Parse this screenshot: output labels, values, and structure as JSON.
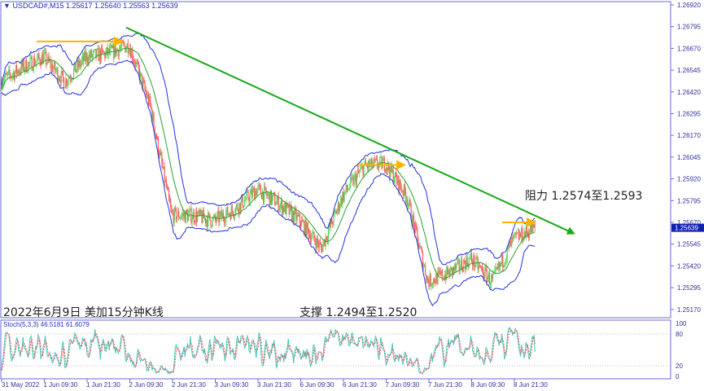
{
  "header": {
    "symbol": "USDCAD#,M15",
    "open": "1.25617",
    "high": "1.25640",
    "low": "1.25563",
    "close": "1.25639"
  },
  "annotations": {
    "title": "2022年6月9日 美加15分钟K线",
    "support": "支撑 1.2494至1.2520",
    "resistance": "阻力 1.2574至1.2593"
  },
  "colors": {
    "bull": "#5fd35f",
    "bear": "#ff5a5a",
    "bands": "#2233dd",
    "ma": "#2ea02e",
    "trend": "#1aaa1a",
    "levels": "#ffb300",
    "stoch_main": "#40c8c0",
    "stoch_signal": "#ff5050",
    "axis": "#6a6ad8",
    "price_tag_bg": "#1020b0"
  },
  "chart_data": [
    {
      "type": "candlestick",
      "symbol": "USDCAD#",
      "timeframe": "M15",
      "indicators": [
        "Bollinger Bands",
        "Moving Average"
      ],
      "y_axis": {
        "range": [
          1.251,
          1.2696
        ],
        "ticks": [
          "1.26920",
          "1.26795",
          "1.26670",
          "1.26545",
          "1.26420",
          "1.26295",
          "1.26170",
          "1.26045",
          "1.25920",
          "1.25795",
          "1.25670",
          "1.25545",
          "1.25420",
          "1.25295",
          "1.25170"
        ]
      },
      "current_price": "1.25639",
      "x_axis": {
        "ticks": [
          "31 May 2022",
          "1 Jun 09:30",
          "1 Jun 21:30",
          "2 Jun 09:30",
          "2 Jun 21:30",
          "3 Jun 09:30",
          "3 Jun 21:30",
          "6 Jun 09:30",
          "6 Jun 21:30",
          "7 Jun 09:30",
          "7 Jun 21:30",
          "8 Jun 09:30",
          "8 Jun 21:30"
        ]
      },
      "price_path": [
        {
          "t": "31 May 21:30",
          "close": 1.2648
        },
        {
          "t": "1 Jun 03:30",
          "close": 1.2656
        },
        {
          "t": "1 Jun 09:30",
          "close": 1.2662
        },
        {
          "t": "1 Jun 15:30",
          "close": 1.2648
        },
        {
          "t": "1 Jun 21:30",
          "close": 1.2662
        },
        {
          "t": "2 Jun 03:30",
          "close": 1.2664
        },
        {
          "t": "2 Jun 09:30",
          "close": 1.2669
        },
        {
          "t": "2 Jun 15:30",
          "close": 1.2634
        },
        {
          "t": "2 Jun 21:30",
          "close": 1.2571
        },
        {
          "t": "3 Jun 03:30",
          "close": 1.2571
        },
        {
          "t": "3 Jun 09:30",
          "close": 1.2568
        },
        {
          "t": "3 Jun 15:30",
          "close": 1.2575
        },
        {
          "t": "3 Jun 21:30",
          "close": 1.2586
        },
        {
          "t": "6 Jun 03:30",
          "close": 1.2578
        },
        {
          "t": "6 Jun 09:30",
          "close": 1.2568
        },
        {
          "t": "6 Jun 15:30",
          "close": 1.2552
        },
        {
          "t": "6 Jun 21:30",
          "close": 1.2582
        },
        {
          "t": "7 Jun 03:30",
          "close": 1.2599
        },
        {
          "t": "7 Jun 09:30",
          "close": 1.2601
        },
        {
          "t": "7 Jun 15:30",
          "close": 1.2582
        },
        {
          "t": "7 Jun 21:30",
          "close": 1.2533
        },
        {
          "t": "8 Jun 03:30",
          "close": 1.2538
        },
        {
          "t": "8 Jun 09:30",
          "close": 1.2546
        },
        {
          "t": "8 Jun 15:30",
          "close": 1.2533
        },
        {
          "t": "8 Jun 21:30",
          "close": 1.2557
        },
        {
          "t": "9 Jun 03:30",
          "close": 1.25639
        }
      ],
      "horizontal_levels": [
        {
          "from": "31 May 2022",
          "to": "2 Jun 03:30",
          "price": 1.2671
        },
        {
          "from": "6 Jun 21:30",
          "to": "7 Jun 09:30",
          "price": 1.26
        },
        {
          "from": "8 Jun 21:30",
          "to": "9 Jun 03:30",
          "price": 1.2567
        }
      ],
      "trend_line": {
        "from": {
          "t": "2 Jun 03:30",
          "price": 1.2679
        },
        "to": {
          "t": "9 Jun 12:00",
          "price": 1.2563
        }
      }
    },
    {
      "type": "line",
      "indicator": "Stoch(5,3,3)",
      "label": "Stoch(5,3,3) 46.5181 61.6079",
      "main_value": 46.5181,
      "signal_value": 61.6079,
      "y_axis": {
        "range": [
          0,
          100
        ],
        "ticks": [
          "100",
          "80",
          "20",
          "0"
        ],
        "levels": [
          80,
          20
        ]
      }
    }
  ]
}
